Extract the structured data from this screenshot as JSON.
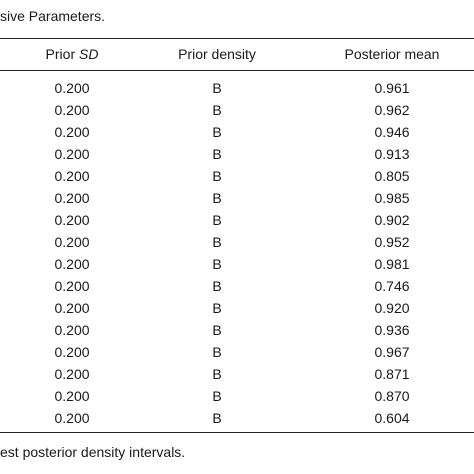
{
  "caption": "sive Parameters.",
  "table": {
    "header": {
      "prior_sd": {
        "text": "Prior",
        "italic": "SD"
      },
      "prior_density": "Prior density",
      "posterior_mean": "Posterior mean"
    },
    "rows": [
      [
        "0.200",
        "B",
        "0.961"
      ],
      [
        "0.200",
        "B",
        "0.962"
      ],
      [
        "0.200",
        "B",
        "0.946"
      ],
      [
        "0.200",
        "B",
        "0.913"
      ],
      [
        "0.200",
        "B",
        "0.805"
      ],
      [
        "0.200",
        "B",
        "0.985"
      ],
      [
        "0.200",
        "B",
        "0.902"
      ],
      [
        "0.200",
        "B",
        "0.952"
      ],
      [
        "0.200",
        "B",
        "0.981"
      ],
      [
        "0.200",
        "B",
        "0.746"
      ],
      [
        "0.200",
        "B",
        "0.920"
      ],
      [
        "0.200",
        "B",
        "0.936"
      ],
      [
        "0.200",
        "B",
        "0.967"
      ],
      [
        "0.200",
        "B",
        "0.871"
      ],
      [
        "0.200",
        "B",
        "0.870"
      ],
      [
        "0.200",
        "B",
        "0.604"
      ]
    ]
  },
  "footer": "est posterior density intervals."
}
